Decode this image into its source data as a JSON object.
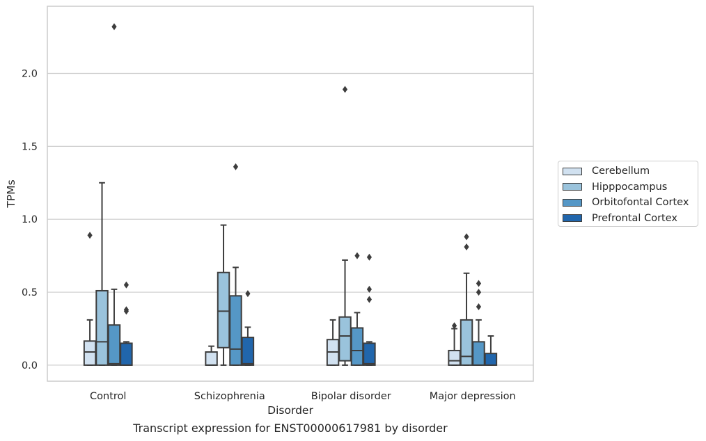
{
  "chart_data": {
    "type": "boxplot",
    "xlabel": "Disorder",
    "ylabel": "TPMs",
    "ylim": [
      -0.11,
      2.46
    ],
    "yticks": [
      0.0,
      0.5,
      1.0,
      1.5,
      2.0
    ],
    "ytick_labels": [
      "0.0",
      "0.5",
      "1.0",
      "1.5",
      "2.0"
    ],
    "grid": "horizontal",
    "legend_position": "right",
    "categories": [
      "Control",
      "Schizophrenia",
      "Bipolar disorder",
      "Major depression"
    ],
    "series": [
      {
        "name": "Cerebellum",
        "color": "#d1e1f0",
        "boxes": [
          {
            "q1": 0.0,
            "median": 0.09,
            "q3": 0.165,
            "whisker_low": 0.0,
            "whisker_high": 0.31,
            "outliers": [
              0.89
            ]
          },
          {
            "q1": 0.0,
            "median": 0.0,
            "q3": 0.09,
            "whisker_low": 0.0,
            "whisker_high": 0.13,
            "outliers": []
          },
          {
            "q1": 0.0,
            "median": 0.09,
            "q3": 0.175,
            "whisker_low": 0.0,
            "whisker_high": 0.31,
            "outliers": []
          },
          {
            "q1": 0.0,
            "median": 0.03,
            "q3": 0.1,
            "whisker_low": 0.0,
            "whisker_high": 0.25,
            "outliers": [
              0.27
            ]
          }
        ]
      },
      {
        "name": "Hipppocampus",
        "color": "#9ac3dc",
        "boxes": [
          {
            "q1": 0.0,
            "median": 0.16,
            "q3": 0.51,
            "whisker_low": 0.0,
            "whisker_high": 1.25,
            "outliers": []
          },
          {
            "q1": 0.12,
            "median": 0.37,
            "q3": 0.635,
            "whisker_low": 0.0,
            "whisker_high": 0.96,
            "outliers": []
          },
          {
            "q1": 0.03,
            "median": 0.2,
            "q3": 0.33,
            "whisker_low": 0.0,
            "whisker_high": 0.72,
            "outliers": [
              1.89
            ]
          },
          {
            "q1": 0.0,
            "median": 0.06,
            "q3": 0.31,
            "whisker_low": 0.0,
            "whisker_high": 0.63,
            "outliers": [
              0.81,
              0.88
            ]
          }
        ]
      },
      {
        "name": "Orbitofontal Cortex",
        "color": "#5597c6",
        "boxes": [
          {
            "q1": 0.0,
            "median": 0.01,
            "q3": 0.275,
            "whisker_low": 0.0,
            "whisker_high": 0.52,
            "outliers": [
              2.32
            ]
          },
          {
            "q1": 0.0,
            "median": 0.11,
            "q3": 0.475,
            "whisker_low": 0.0,
            "whisker_high": 0.67,
            "outliers": [
              1.36
            ]
          },
          {
            "q1": 0.0,
            "median": 0.1,
            "q3": 0.255,
            "whisker_low": 0.0,
            "whisker_high": 0.36,
            "outliers": [
              0.75
            ]
          },
          {
            "q1": 0.0,
            "median": 0.0,
            "q3": 0.16,
            "whisker_low": 0.0,
            "whisker_high": 0.31,
            "outliers": [
              0.4,
              0.5,
              0.56
            ]
          }
        ]
      },
      {
        "name": "Prefrontal Cortex",
        "color": "#2166ac",
        "boxes": [
          {
            "q1": 0.0,
            "median": 0.0,
            "q3": 0.15,
            "whisker_low": 0.0,
            "whisker_high": 0.16,
            "outliers": [
              0.37,
              0.38,
              0.55
            ]
          },
          {
            "q1": 0.0,
            "median": 0.01,
            "q3": 0.19,
            "whisker_low": 0.0,
            "whisker_high": 0.26,
            "outliers": [
              0.49
            ]
          },
          {
            "q1": 0.0,
            "median": 0.01,
            "q3": 0.15,
            "whisker_low": 0.0,
            "whisker_high": 0.16,
            "outliers": [
              0.45,
              0.52,
              0.74
            ]
          },
          {
            "q1": 0.0,
            "median": 0.0,
            "q3": 0.08,
            "whisker_low": 0.0,
            "whisker_high": 0.2,
            "outliers": []
          }
        ]
      }
    ]
  },
  "caption": "Transcript expression for ENST00000617981 by disorder",
  "colors": {
    "box_edge": "#3d3d3d",
    "grid": "#cccccc",
    "axes_frame": "#cccccc",
    "text": "#262626"
  }
}
